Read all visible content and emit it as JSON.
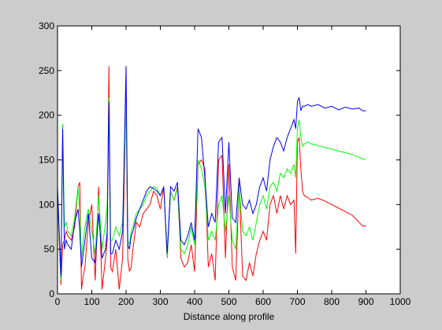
{
  "chart_data": {
    "type": "line",
    "title": "",
    "xlabel": "Distance along profile",
    "ylabel": "",
    "xlim": [
      0,
      1000
    ],
    "ylim": [
      0,
      300
    ],
    "x_ticks": [
      0,
      100,
      200,
      300,
      400,
      500,
      600,
      700,
      800,
      900,
      1000
    ],
    "y_ticks": [
      0,
      50,
      100,
      150,
      200,
      250,
      300
    ],
    "x_tick_labels": [
      "0",
      "100",
      "200",
      "300",
      "400",
      "500",
      "600",
      "700",
      "800",
      "900",
      "1000"
    ],
    "y_tick_labels": [
      "0",
      "50",
      "100",
      "150",
      "200",
      "250",
      "300"
    ],
    "grid": false,
    "legend": "none",
    "background": "#cccccc",
    "axes_background": "#ffffff",
    "series": [
      {
        "color": "#ff0000",
        "x": [
          0,
          5,
          10,
          15,
          20,
          25,
          30,
          40,
          50,
          60,
          65,
          70,
          75,
          80,
          90,
          100,
          110,
          120,
          130,
          140,
          145,
          150,
          155,
          160,
          170,
          180,
          190,
          200,
          205,
          210,
          215,
          220,
          230,
          240,
          250,
          260,
          270,
          280,
          290,
          300,
          310,
          320,
          330,
          340,
          350,
          360,
          370,
          380,
          390,
          400,
          410,
          420,
          430,
          440,
          450,
          460,
          470,
          480,
          490,
          500,
          510,
          520,
          530,
          540,
          550,
          560,
          570,
          580,
          590,
          600,
          610,
          620,
          630,
          640,
          650,
          660,
          670,
          680,
          690,
          695,
          700,
          705,
          710,
          715,
          720,
          730,
          740,
          760,
          780,
          800,
          820,
          840,
          860,
          880,
          890,
          900
        ],
        "y": [
          110,
          60,
          10,
          55,
          60,
          70,
          65,
          60,
          75,
          120,
          125,
          5,
          20,
          30,
          80,
          100,
          15,
          120,
          5,
          40,
          60,
          255,
          30,
          25,
          50,
          5,
          40,
          225,
          40,
          25,
          30,
          50,
          80,
          75,
          90,
          95,
          100,
          115,
          110,
          95,
          120,
          40,
          115,
          105,
          120,
          40,
          30,
          35,
          55,
          25,
          145,
          150,
          140,
          30,
          45,
          15,
          150,
          155,
          40,
          145,
          30,
          15,
          125,
          20,
          15,
          35,
          20,
          45,
          60,
          70,
          60,
          100,
          110,
          90,
          110,
          95,
          110,
          100,
          105,
          45,
          170,
          175,
          140,
          115,
          110,
          108,
          105,
          107,
          104,
          100,
          96,
          92,
          88,
          80,
          76,
          76
        ]
      },
      {
        "color": "#00ff00",
        "x": [
          0,
          5,
          10,
          15,
          20,
          25,
          30,
          40,
          50,
          60,
          65,
          70,
          75,
          80,
          90,
          100,
          110,
          120,
          130,
          140,
          145,
          150,
          155,
          160,
          170,
          180,
          190,
          200,
          205,
          210,
          215,
          220,
          230,
          240,
          250,
          260,
          270,
          280,
          290,
          300,
          310,
          320,
          330,
          340,
          350,
          360,
          370,
          380,
          390,
          400,
          410,
          420,
          430,
          440,
          450,
          460,
          470,
          480,
          490,
          500,
          510,
          520,
          530,
          540,
          550,
          560,
          570,
          580,
          590,
          600,
          610,
          620,
          630,
          640,
          650,
          660,
          670,
          680,
          690,
          695,
          700,
          705,
          710,
          715,
          720,
          730,
          740,
          760,
          780,
          800,
          820,
          840,
          860,
          880,
          890,
          900
        ],
        "y": [
          115,
          65,
          15,
          190,
          75,
          80,
          70,
          65,
          85,
          120,
          90,
          40,
          60,
          75,
          95,
          70,
          45,
          110,
          50,
          80,
          100,
          220,
          60,
          60,
          75,
          65,
          80,
          215,
          60,
          55,
          70,
          75,
          90,
          95,
          100,
          110,
          115,
          120,
          118,
          110,
          120,
          40,
          115,
          105,
          118,
          50,
          45,
          55,
          75,
          55,
          150,
          140,
          120,
          60,
          70,
          60,
          100,
          110,
          70,
          110,
          60,
          50,
          120,
          70,
          65,
          75,
          60,
          80,
          100,
          110,
          95,
          120,
          125,
          115,
          135,
          130,
          140,
          135,
          145,
          130,
          185,
          195,
          175,
          165,
          168,
          170,
          168,
          166,
          164,
          162,
          160,
          158,
          156,
          153,
          151,
          151
        ]
      },
      {
        "color": "#0000ff",
        "x": [
          0,
          5,
          10,
          15,
          20,
          25,
          30,
          40,
          50,
          60,
          65,
          70,
          75,
          80,
          90,
          100,
          110,
          120,
          130,
          140,
          145,
          150,
          155,
          160,
          170,
          180,
          190,
          200,
          205,
          210,
          215,
          220,
          230,
          240,
          250,
          260,
          270,
          280,
          290,
          300,
          310,
          320,
          330,
          340,
          350,
          360,
          370,
          380,
          390,
          400,
          410,
          420,
          430,
          440,
          450,
          460,
          470,
          480,
          490,
          500,
          510,
          520,
          530,
          540,
          550,
          560,
          570,
          580,
          590,
          600,
          610,
          620,
          630,
          640,
          650,
          660,
          670,
          680,
          690,
          695,
          700,
          705,
          710,
          715,
          720,
          730,
          740,
          760,
          780,
          800,
          820,
          840,
          860,
          880,
          890,
          900
        ],
        "y": [
          120,
          70,
          20,
          185,
          50,
          60,
          55,
          50,
          80,
          95,
          70,
          30,
          45,
          60,
          90,
          40,
          35,
          90,
          40,
          50,
          70,
          215,
          45,
          45,
          60,
          50,
          70,
          255,
          55,
          50,
          65,
          70,
          85,
          95,
          105,
          115,
          120,
          118,
          115,
          110,
          120,
          45,
          120,
          115,
          125,
          60,
          55,
          65,
          80,
          60,
          185,
          175,
          130,
          75,
          90,
          80,
          170,
          175,
          90,
          170,
          85,
          80,
          130,
          100,
          95,
          105,
          90,
          100,
          120,
          130,
          115,
          150,
          165,
          175,
          170,
          160,
          175,
          185,
          195,
          185,
          215,
          220,
          205,
          210,
          210,
          212,
          210,
          212,
          208,
          210,
          206,
          209,
          207,
          208,
          205,
          205
        ]
      }
    ]
  }
}
